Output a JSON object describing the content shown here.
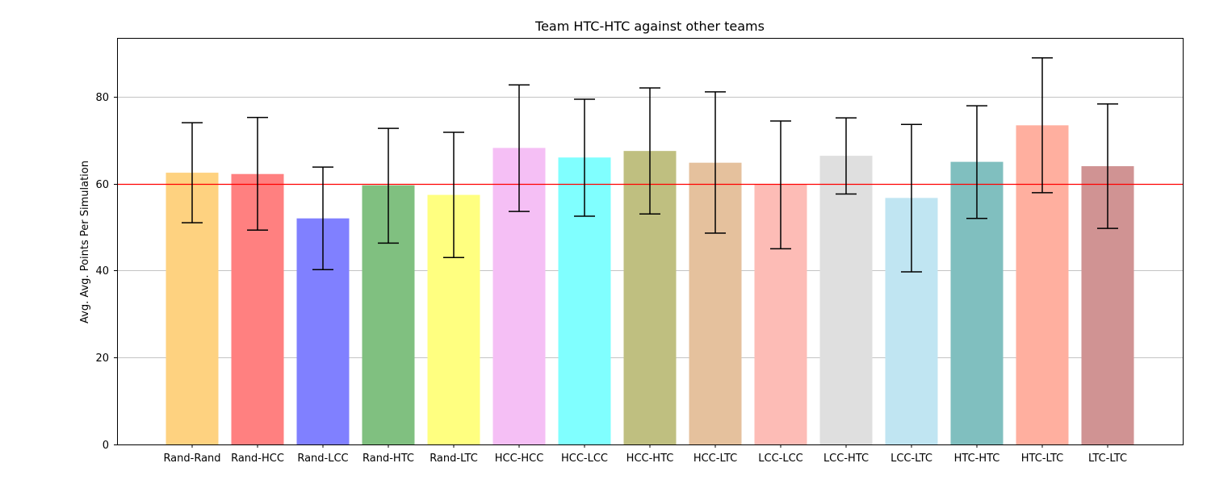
{
  "chart_data": {
    "type": "bar",
    "title": "Team HTC-HTC against other teams",
    "xlabel": "",
    "ylabel": "Avg. Avg. Points Per Simulation",
    "ylim": [
      0,
      93.5
    ],
    "yticks": [
      0,
      20,
      40,
      60,
      80
    ],
    "grid": "y",
    "legend": "none",
    "reference_line": {
      "y": 60,
      "color": "#ff0000"
    },
    "categories": [
      "Rand-Rand",
      "Rand-HCC",
      "Rand-LCC",
      "Rand-HTC",
      "Rand-LTC",
      "HCC-HCC",
      "HCC-LCC",
      "HCC-HTC",
      "HCC-LTC",
      "LCC-LCC",
      "LCC-HTC",
      "LCC-LTC",
      "HTC-HTC",
      "HTC-LTC",
      "LTC-LTC"
    ],
    "values": [
      62.5,
      62.2,
      52.0,
      59.6,
      57.4,
      68.2,
      66.0,
      67.5,
      64.8,
      59.8,
      66.4,
      56.7,
      65.0,
      73.4,
      64.0
    ],
    "error_low": [
      51.0,
      49.3,
      40.2,
      46.3,
      43.0,
      53.6,
      52.5,
      53.0,
      48.6,
      45.0,
      57.6,
      39.7,
      52.0,
      57.9,
      49.7
    ],
    "error_high": [
      74.0,
      75.2,
      63.8,
      72.7,
      71.8,
      82.7,
      79.4,
      82.0,
      81.1,
      74.4,
      75.1,
      73.6,
      77.9,
      88.9,
      78.3
    ],
    "colors": [
      "#fed280",
      "#ff8080",
      "#8080ff",
      "#80c080",
      "#ffff80",
      "#f5bff5",
      "#80ffff",
      "#bfbf80",
      "#e5c19d",
      "#fdbcb6",
      "#dfdfdf",
      "#c0e5f2",
      "#80bfbf",
      "#ffaf9f",
      "#d09393"
    ]
  }
}
